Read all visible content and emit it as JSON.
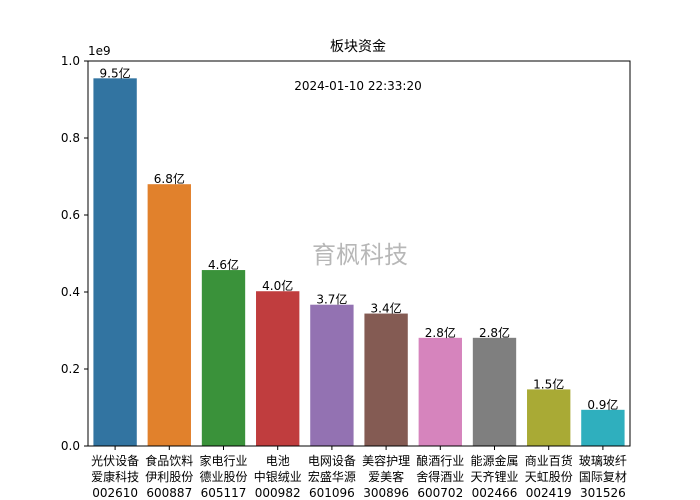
{
  "chart_data": {
    "type": "bar",
    "title": "板块资金",
    "timestamp": "2024-01-10 22:33:20",
    "watermark": "育枫科技",
    "xlabel": "",
    "ylabel": "",
    "y_offset_label": "1e9",
    "ylim": [
      0,
      1.0
    ],
    "y_ticks": [
      "0.0",
      "0.2",
      "0.4",
      "0.6",
      "0.8",
      "1.0"
    ],
    "grid": false,
    "categories": [
      {
        "sector": "光伏设备",
        "stock": "爱康科技",
        "code": "002610"
      },
      {
        "sector": "食品饮料",
        "stock": "伊利股份",
        "code": "600887"
      },
      {
        "sector": "家电行业",
        "stock": "德业股份",
        "code": "605117"
      },
      {
        "sector": "电池",
        "stock": "中银绒业",
        "code": "000982"
      },
      {
        "sector": "电网设备",
        "stock": "宏盛华源",
        "code": "601096"
      },
      {
        "sector": "美容护理",
        "stock": "爱美客",
        "code": "300896"
      },
      {
        "sector": "酿酒行业",
        "stock": "舍得酒业",
        "code": "600702"
      },
      {
        "sector": "能源金属",
        "stock": "天齐锂业",
        "code": "002466"
      },
      {
        "sector": "商业百货",
        "stock": "天虹股份",
        "code": "002419"
      },
      {
        "sector": "玻璃玻纤",
        "stock": "国际复材",
        "code": "301526"
      }
    ],
    "values": [
      0.955,
      0.68,
      0.457,
      0.402,
      0.367,
      0.344,
      0.281,
      0.281,
      0.147,
      0.094
    ],
    "value_labels": [
      "9.5亿",
      "6.8亿",
      "4.6亿",
      "4.0亿",
      "3.7亿",
      "3.4亿",
      "2.8亿",
      "2.8亿",
      "1.5亿",
      "0.9亿"
    ],
    "colors": [
      "#3274a1",
      "#e1812c",
      "#3a923a",
      "#c03d3e",
      "#9372b2",
      "#845b53",
      "#d684bd",
      "#7f7f7f",
      "#a9aa35",
      "#2fafbe"
    ]
  }
}
